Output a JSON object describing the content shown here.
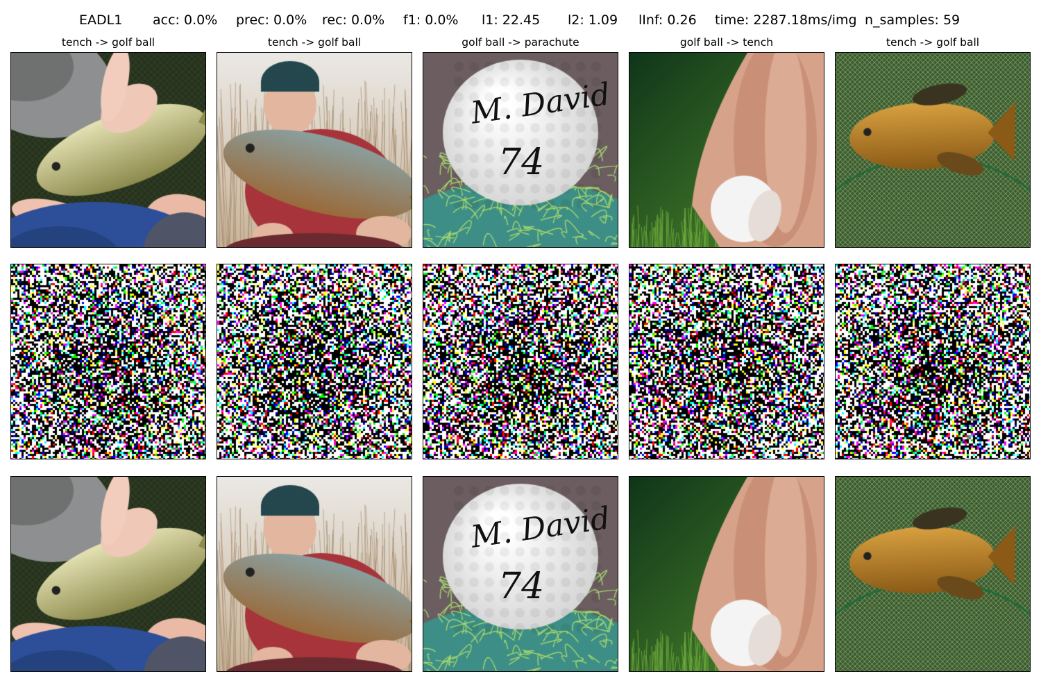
{
  "header": {
    "method": "EADL1",
    "acc": "acc: 0.0%",
    "prec": "prec: 0.0%",
    "rec": "rec: 0.0%",
    "f1": "f1: 0.0%",
    "l1": "l1: 22.45",
    "l2": "l2: 1.09",
    "linf": "lInf: 0.26",
    "time": "time: 2287.18ms/img",
    "n_samples": "n_samples: 59"
  },
  "columns": [
    {
      "title": "tench -> golf ball",
      "scene": "fish-hand"
    },
    {
      "title": "tench -> golf ball",
      "scene": "man-carp"
    },
    {
      "title": "golf ball -> parachute",
      "scene": "signed-golfball"
    },
    {
      "title": "golf ball -> tench",
      "scene": "hand-golfball"
    },
    {
      "title": "tench -> golf ball",
      "scene": "tench-net"
    }
  ],
  "rows": [
    "original",
    "perturbation",
    "adversarial"
  ],
  "golfball_text": {
    "line1": "M. David",
    "line2": "74"
  }
}
